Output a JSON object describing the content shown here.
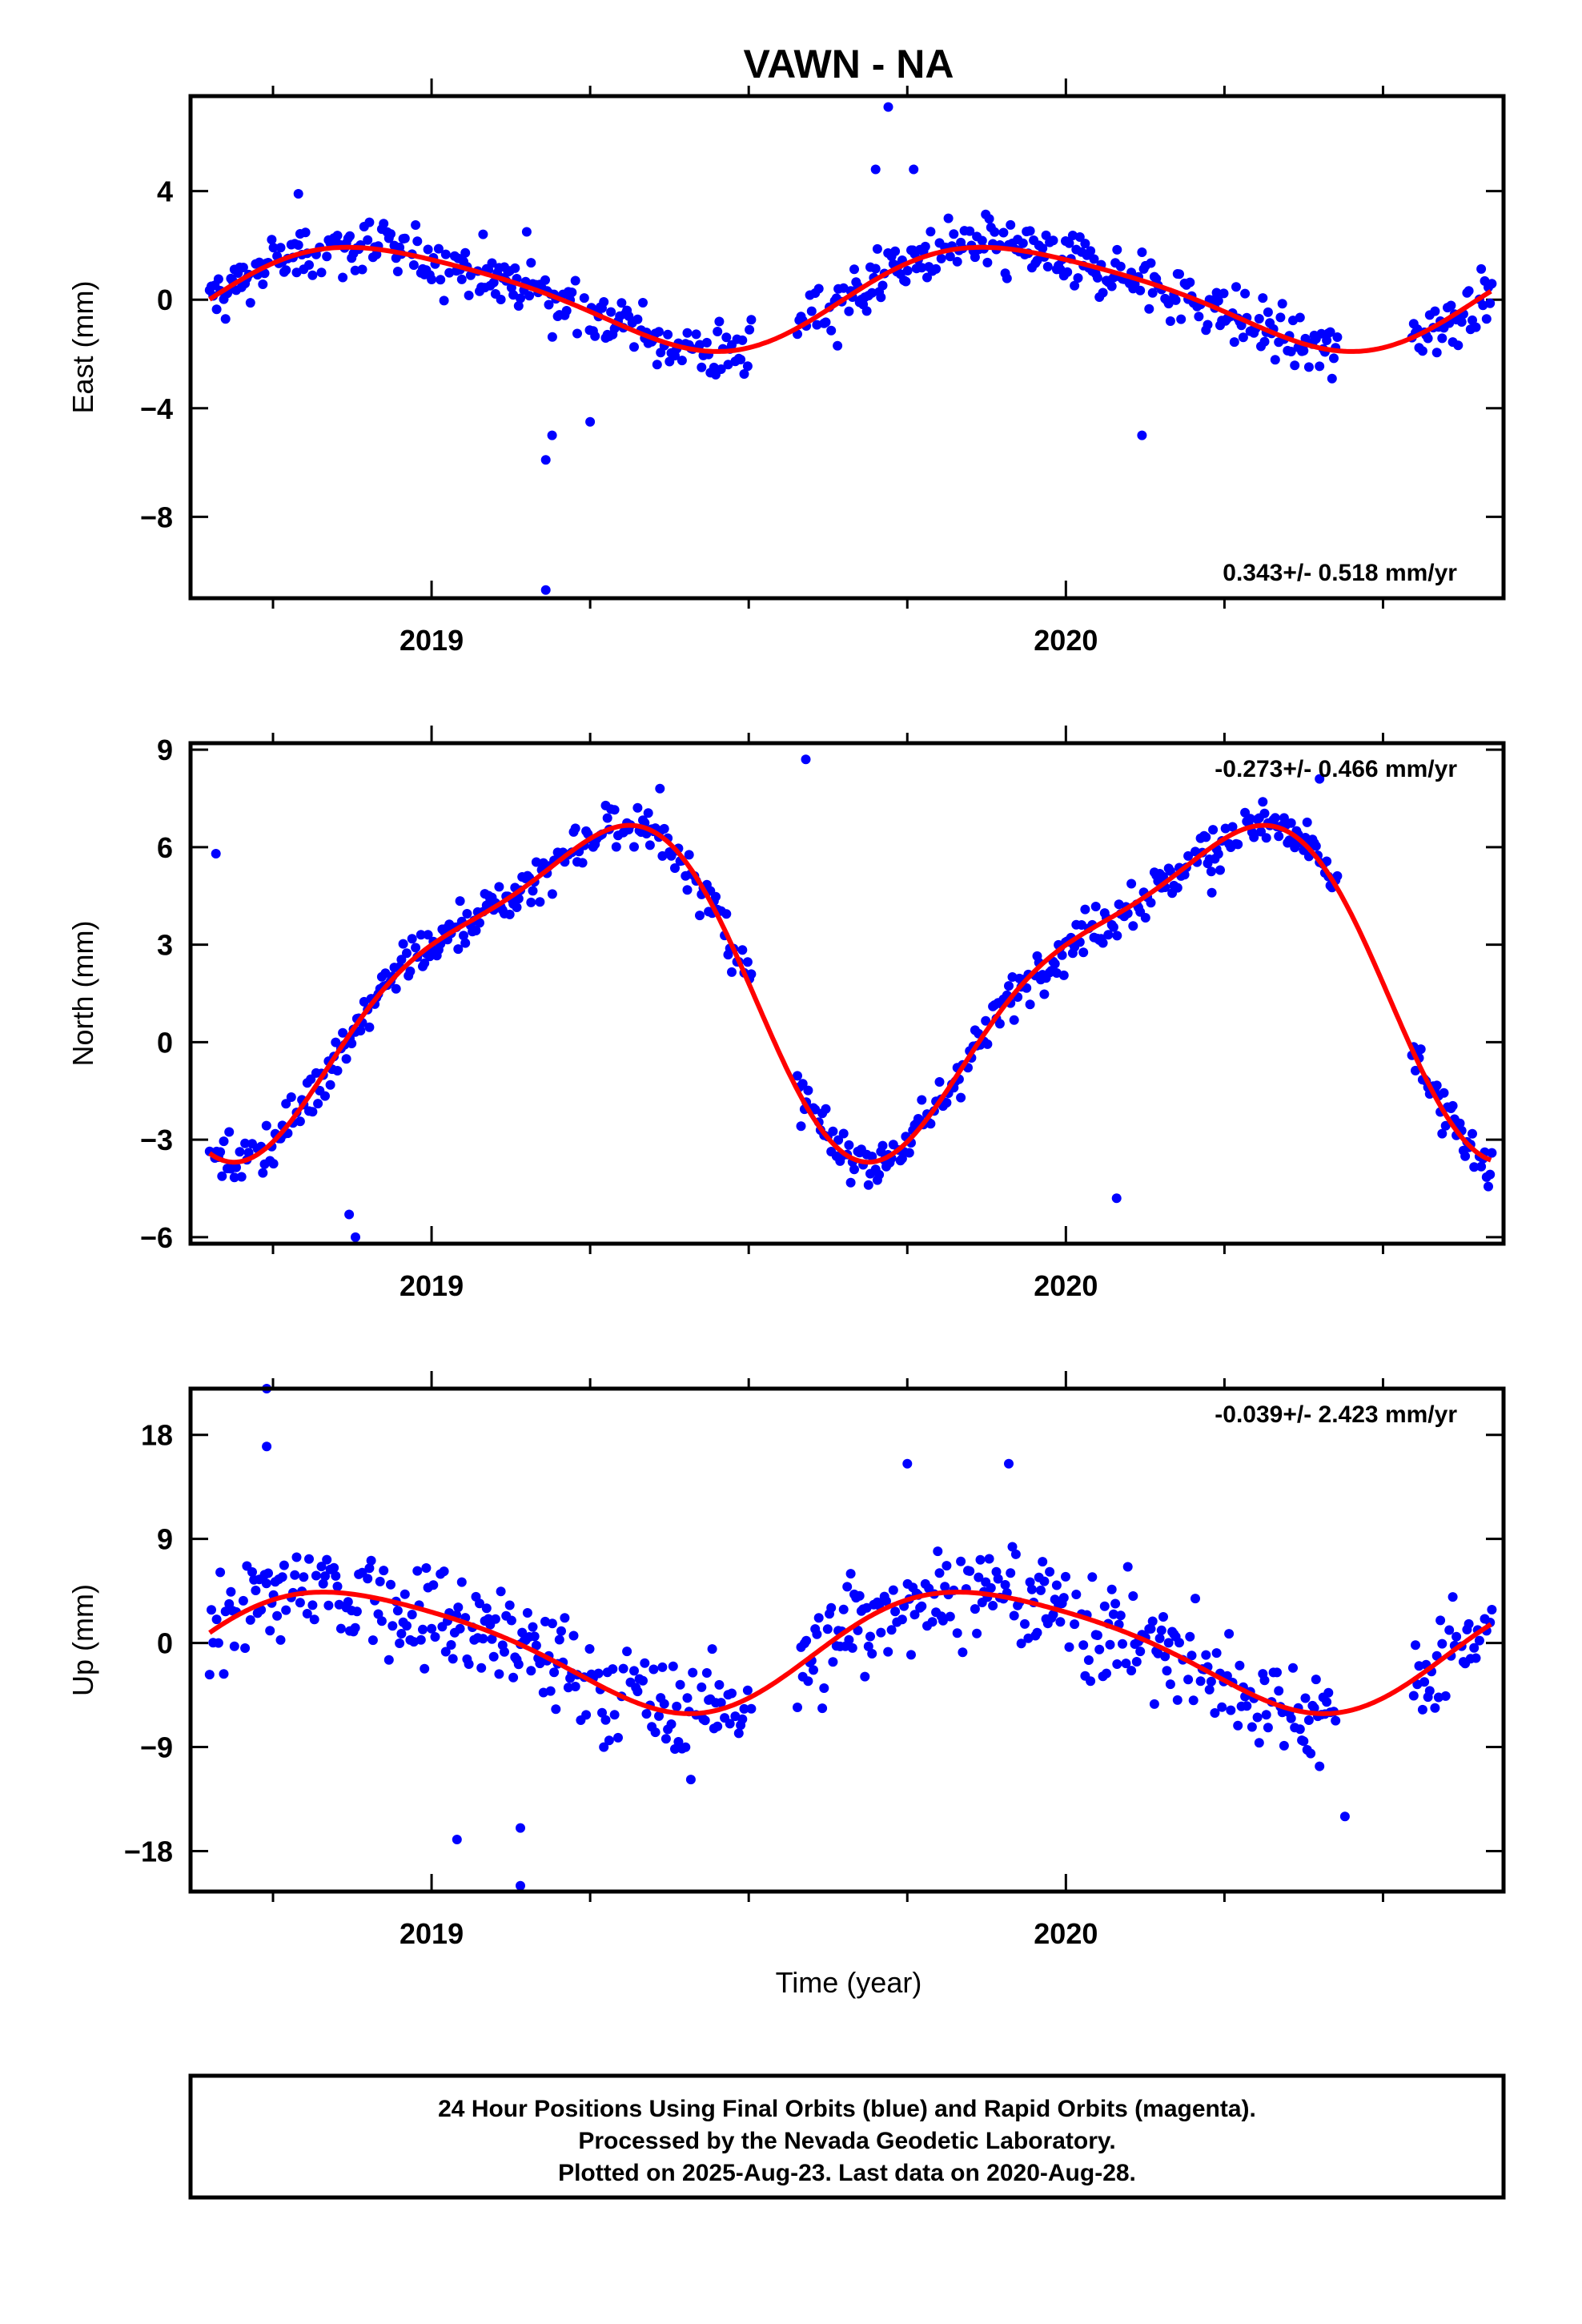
{
  "page_title": "VAWN - NA",
  "x_axis_label": "Time (year)",
  "footer": {
    "lines": [
      "24 Hour Positions Using Final Orbits (blue) and Rapid Orbits (magenta).",
      "Processed by the Nevada Geodetic Laboratory.",
      "Plotted on 2025-Aug-23. Last data on 2020-Aug-28."
    ]
  },
  "colors": {
    "points": "#0000ff",
    "model": "#ff0000",
    "frame": "#000000"
  },
  "chart_data": [
    {
      "type": "scatter",
      "name": "east",
      "ylabel": "East (mm)",
      "rate_text": "0.343+/- 0.518 mm/yr",
      "xlim": [
        2018.62,
        2020.69
      ],
      "ylim": [
        -11,
        7.5
      ],
      "yticks": [
        4,
        0,
        -4,
        -8
      ],
      "ytick_labels": [
        "4",
        "0",
        "−4",
        "−8"
      ],
      "xticks": [
        2019,
        2020
      ],
      "xtick_labels": [
        "2019",
        "2020"
      ],
      "xminor": [
        2018.75,
        2019.25,
        2019.5,
        2019.75,
        2020.25,
        2020.5
      ],
      "seasonal": {
        "mean": 0.15,
        "amp1": 1.85,
        "t0": 2018.92,
        "amp2": 0.3,
        "t2": 2018.75
      },
      "outliers": [
        [
          2019.18,
          -10.7
        ],
        [
          2019.18,
          -5.9
        ],
        [
          2019.19,
          -5.0
        ],
        [
          2019.25,
          -4.5
        ],
        [
          2019.72,
          7.1
        ],
        [
          2019.7,
          4.8
        ],
        [
          2019.64,
          -1.7
        ],
        [
          2020.12,
          -5.0
        ],
        [
          2019.15,
          2.5
        ],
        [
          2018.79,
          3.9
        ],
        [
          2019.76,
          4.8
        ]
      ],
      "noise": 1.05
    },
    {
      "type": "scatter",
      "name": "north",
      "ylabel": "North (mm)",
      "rate_text": "-0.273+/- 0.466 mm/yr",
      "xlim": [
        2018.62,
        2020.69
      ],
      "ylim": [
        -6.2,
        9.2
      ],
      "yticks": [
        9,
        6,
        3,
        0,
        -3,
        -6
      ],
      "ytick_labels": [
        "9",
        "6",
        "3",
        "0",
        "−3",
        "−6"
      ],
      "xticks": [
        2019,
        2020
      ],
      "xtick_labels": [
        "2019",
        "2020"
      ],
      "xminor": [
        2018.75,
        2019.25,
        2019.5,
        2019.75,
        2020.25,
        2020.5
      ],
      "seasonal": {
        "mean": 2.0,
        "amp1": 4.7,
        "t0": 2019.23,
        "amp2": 1.3,
        "t2": 2019.4
      },
      "outliers": [
        [
          2018.88,
          -6.0
        ],
        [
          2018.87,
          -5.3
        ],
        [
          2019.59,
          8.7
        ],
        [
          2020.4,
          8.1
        ],
        [
          2019.36,
          7.8
        ],
        [
          2020.08,
          -4.8
        ],
        [
          2020.23,
          4.6
        ],
        [
          2018.66,
          5.8
        ]
      ],
      "noise": 0.75
    },
    {
      "type": "scatter",
      "name": "up",
      "ylabel": "Up (mm)",
      "rate_text": "-0.039+/- 2.423 mm/yr",
      "xlim": [
        2018.62,
        2020.69
      ],
      "ylim": [
        -21.5,
        22
      ],
      "yticks": [
        18,
        9,
        0,
        -9,
        -18
      ],
      "ytick_labels": [
        "18",
        "9",
        "0",
        "−9",
        "−18"
      ],
      "xticks": [
        2019,
        2020
      ],
      "xtick_labels": [
        "2019",
        "2020"
      ],
      "xminor": [
        2018.75,
        2019.25,
        2019.5,
        2019.75,
        2020.25,
        2020.5
      ],
      "seasonal": {
        "mean": -0.4,
        "amp1": 5.1,
        "t0": 2018.88,
        "amp2": 0.8,
        "t2": 2018.7
      },
      "outliers": [
        [
          2018.74,
          22.0
        ],
        [
          2018.74,
          17.0
        ],
        [
          2019.14,
          -21.0
        ],
        [
          2019.04,
          -17.0
        ],
        [
          2019.75,
          15.5
        ],
        [
          2019.91,
          15.5
        ],
        [
          2020.44,
          -15.0
        ],
        [
          2019.14,
          -16.0
        ]
      ],
      "noise": 4.6
    }
  ]
}
